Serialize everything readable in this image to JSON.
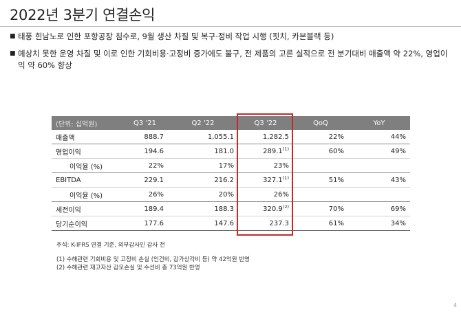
{
  "title": "2022년 3분기 연결손익",
  "bullets": [
    "태풍 힌남노로 인한 포항공장 침수로, 9월 생산 차질 및 복구·정비 작업 시행 (핏치, 카본블랙 등)",
    "예상치 못한 운영 차질 및 이로 인한 기회비용·고정비 증가에도 불구, 전 제품의 고른 실적으로 전 분기대비 매출액 약 22%, 영업이익 약 60% 향상"
  ],
  "table": {
    "headers": [
      "(단위: 십억원)",
      "Q3 '21",
      "Q2 '22",
      "Q3 '22",
      "QoQ",
      "YoY"
    ],
    "rows": [
      {
        "label": "매출액",
        "q3_21": "888.7",
        "q2_22": "1,055.1",
        "q3_22": "1,282.5",
        "q3_22_note": "",
        "qoq": "22%",
        "yoy": "44%"
      },
      {
        "label": "영업이익",
        "q3_21": "194.6",
        "q2_22": "181.0",
        "q3_22": "289.1",
        "q3_22_note": "(1)",
        "qoq": "60%",
        "yoy": "49%"
      },
      {
        "label": "이익율 (%)",
        "q3_21": "22%",
        "q2_22": "17%",
        "q3_22": "23%",
        "q3_22_note": "",
        "qoq": "",
        "yoy": ""
      },
      {
        "label": "EBITDA",
        "q3_21": "229.1",
        "q2_22": "216.2",
        "q3_22": "327.1",
        "q3_22_note": "(1)",
        "qoq": "51%",
        "yoy": "43%"
      },
      {
        "label": "이익율 (%)",
        "q3_21": "26%",
        "q2_22": "20%",
        "q3_22": "26%",
        "q3_22_note": "",
        "qoq": "",
        "yoy": ""
      },
      {
        "label": "세전이익",
        "q3_21": "189.4",
        "q2_22": "188.3",
        "q3_22": "320.9",
        "q3_22_note": "(2)",
        "qoq": "70%",
        "yoy": "69%"
      },
      {
        "label": "당기순이익",
        "q3_21": "177.6",
        "q2_22": "147.6",
        "q3_22": "237.3",
        "q3_22_note": "",
        "qoq": "61%",
        "yoy": "34%"
      }
    ]
  },
  "notes": {
    "basis": "주석: K-IFRS 연결 기준, 외부감사인 감사 전",
    "note1": "(1) 수해관련 기회비용 및 고정비 손실 (인건비, 감가상각비 등) 약 42억원 반영",
    "note2": "(2) 수해관련 재고자산 감모손실 및 수선비 총 73억원 반영"
  },
  "page_number": "4",
  "colors": {
    "header_bg": "#7f7f7f",
    "highlight": "#c62828"
  }
}
